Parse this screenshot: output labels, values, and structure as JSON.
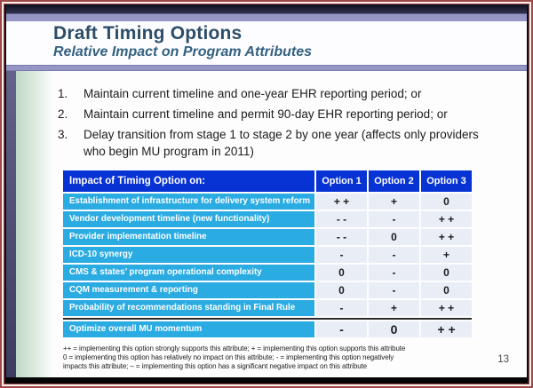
{
  "slide": {
    "title": "Draft Timing Options",
    "subtitle": "Relative Impact on Program Attributes",
    "page_number": "13",
    "list": [
      {
        "num": "1.",
        "text": "Maintain current timeline and one-year EHR reporting period; or"
      },
      {
        "num": "2.",
        "text": "Maintain current timeline and permit 90-day EHR reporting period; or"
      },
      {
        "num": "3.",
        "text": "Delay transition from stage 1 to stage 2 by one year (affects only providers who begin MU program in 2011)"
      }
    ],
    "table": {
      "header_label": "Impact of Timing Option on:",
      "columns": [
        "Option 1",
        "Option 2",
        "Option 3"
      ],
      "rows": [
        {
          "label": "Establishment of infrastructure for delivery system reform",
          "values": [
            "+ +",
            "+",
            "0"
          ]
        },
        {
          "label": "Vendor development timeline (new functionality)",
          "values": [
            "- -",
            "-",
            "+ +"
          ]
        },
        {
          "label": "Provider implementation timeline",
          "values": [
            "- -",
            "0",
            "+ +"
          ]
        },
        {
          "label": "ICD-10 synergy",
          "values": [
            "-",
            "-",
            "+"
          ]
        },
        {
          "label": "CMS & states’ program operational complexity",
          "values": [
            "0",
            "-",
            "0"
          ]
        },
        {
          "label": "CQM measurement & reporting",
          "values": [
            "0",
            "-",
            "0"
          ]
        },
        {
          "label": "Probability of recommendations standing in Final Rule",
          "values": [
            "-",
            "+",
            "+ +"
          ]
        },
        {
          "label": "Optimize overall MU momentum",
          "values": [
            "-",
            "0",
            "+ +"
          ]
        }
      ]
    },
    "legend_lines": [
      "++ = implementing this option strongly supports this attribute; +  = implementing this option supports this attribute",
      "0 = implementing this option has relatively no impact on this attribute; -  = implementing this option negatively",
      "impacts this attribute; –  = implementing this option has a significant negative impact on this attribute"
    ],
    "colors": {
      "header_blue": "#0733d4",
      "row_blue": "#2aabe2",
      "lavender": "#9696c5",
      "frame_maroon": "#9e4848",
      "title_blue": "#2c4d68"
    }
  }
}
